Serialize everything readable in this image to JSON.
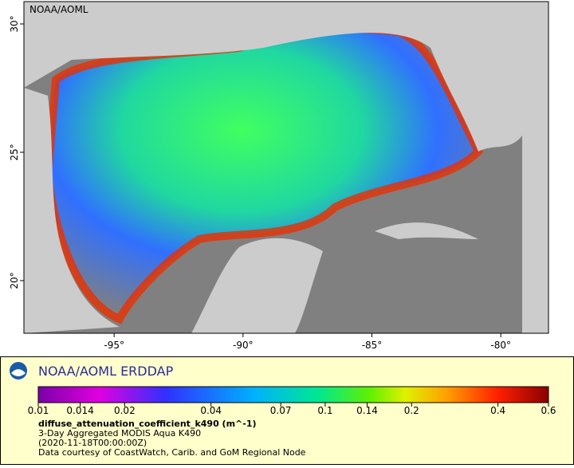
{
  "map": {
    "watermark": "NOAA/AOML",
    "xlim": [
      -98.5,
      -78.15
    ],
    "ylim": [
      17.95,
      30.87
    ],
    "xticks": [
      {
        "value": -95,
        "label": "-95°"
      },
      {
        "value": -90,
        "label": "-90°"
      },
      {
        "value": -85,
        "label": "-85°"
      },
      {
        "value": -80,
        "label": "-80°"
      }
    ],
    "yticks": [
      {
        "value": 20,
        "label": "20°"
      },
      {
        "value": 25,
        "label": "25°"
      },
      {
        "value": 30,
        "label": "30°"
      }
    ]
  },
  "legend": {
    "title": "NOAA/AOML ERDDAP",
    "colorbar": {
      "scale": "log",
      "lim": [
        0.01,
        0.6
      ],
      "ticks": [
        0.01,
        0.014,
        0.02,
        0.04,
        0.07,
        0.1,
        0.14,
        0.2,
        0.4,
        0.6
      ]
    },
    "variable": "diffuse_attenuation_coefficient_k490 (m^-1)",
    "lines": [
      "3-Day Aggregated MODIS Aqua K490",
      "(2020-11-18T00:00:00Z)",
      "Data courtesy of CoastWatch, Carib. and GoM Regional Node"
    ]
  }
}
